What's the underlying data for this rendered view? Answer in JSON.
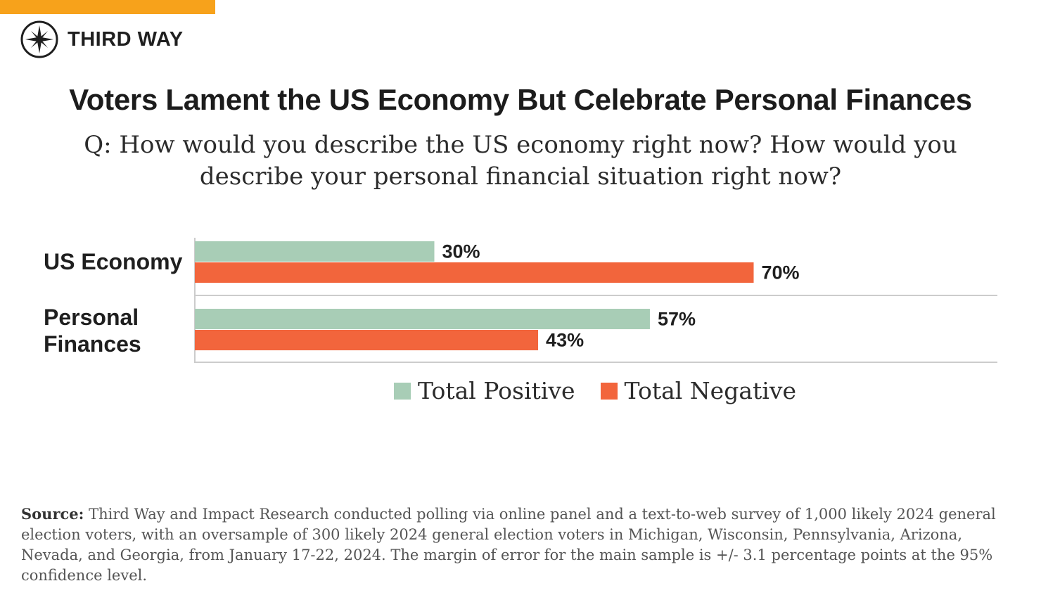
{
  "brand": {
    "name": "THIRD WAY"
  },
  "colors": {
    "accent": "#f7a21b",
    "positive": "#a8cdb6",
    "negative": "#f2653c",
    "axis": "#cccccc"
  },
  "chart_data": {
    "type": "bar",
    "orientation": "horizontal",
    "title": "Voters Lament the US Economy But Celebrate Personal Finances",
    "subtitle": "Q: How would you describe the US economy right now? How would you describe your personal financial situation right now?",
    "categories": [
      [
        "US Economy"
      ],
      [
        "Personal",
        "Finances"
      ]
    ],
    "series": [
      {
        "name": "Total Positive",
        "values": [
          30,
          57
        ],
        "labels": [
          "30%",
          "57%"
        ]
      },
      {
        "name": "Total Negative",
        "values": [
          70,
          43
        ],
        "labels": [
          "70%",
          "43%"
        ]
      }
    ],
    "xlim": [
      0,
      100
    ],
    "legend": "bottom",
    "grid": false
  },
  "source": {
    "label": "Source:",
    "text": "Third Way and Impact Research conducted polling via online panel and a text-to-web survey of 1,000 likely 2024 general election voters, with an oversample of 300 likely 2024 general election voters in Michigan, Wisconsin, Pennsylvania, Arizona, Nevada, and Georgia, from January 17-22, 2024. The margin of error for the main sample is +/- 3.1 percentage points at the 95% confidence level."
  }
}
